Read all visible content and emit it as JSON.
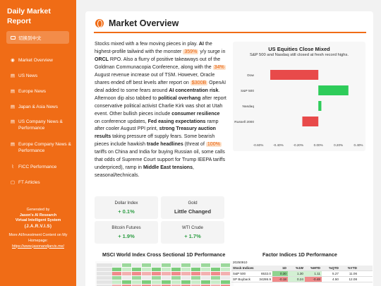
{
  "sidebar": {
    "brand": "Daily Market Report",
    "lang_label": "切换到中文",
    "items": [
      {
        "icon": "globe-icon",
        "glyph": "◉",
        "label": "Market Overview"
      },
      {
        "icon": "news-icon",
        "glyph": "▤",
        "label": "US News"
      },
      {
        "icon": "news-icon",
        "glyph": "▤",
        "label": "Europe News"
      },
      {
        "icon": "news-icon",
        "glyph": "▤",
        "label": "Japan & Asia News"
      },
      {
        "icon": "news-icon",
        "glyph": "▤",
        "label": "US Company News & Performance"
      },
      {
        "icon": "news-icon",
        "glyph": "▤",
        "label": "Europe Company News & Performance"
      },
      {
        "icon": "chart-icon",
        "glyph": "⌇",
        "label": "FICC Performance"
      },
      {
        "icon": "file-icon",
        "glyph": "▢",
        "label": "FT Articles"
      }
    ],
    "footer": {
      "line1": "Generated by",
      "line2": "Jason's AI Research",
      "line3": "Virtual Intelligent System",
      "line4": "(J.A.R.V.I.S)",
      "line5": "More AI/Investment Content on My Homepage:",
      "link": "https://www.jasonandjarvis.me/"
    }
  },
  "main": {
    "title": "Market Overview",
    "article": {
      "p1": "Stocks mixed with a few moving pieces in play. ",
      "b1": "AI",
      "p2": " the highest-profile tailwind with the monster ",
      "h1": "359%",
      "p3": " y/y surge in ",
      "b2": "ORCL",
      "p4": " RPO. Also a flurry of positive takeaways out of the Goldman Communacopia Conference, along with the ",
      "h2": "34%",
      "p5": " August revenue increase out of TSM. However, Oracle shares ended off best levels after report on ",
      "h3": "$300B",
      "p6": " OpenAI deal added to some fears around ",
      "b3": "AI concentration risk",
      "p7": ". Afternoon dip also tabbed to ",
      "b4": "political overhang",
      "p8": " after report conservative political activist Charlie Kirk was shot at Utah event. Other bullish pieces include ",
      "b5": "consumer resilience",
      "p9": " on conference updates, ",
      "b6": "Fed easing expectations",
      "p10": " ramp after cooler August PPI print, ",
      "b7": "strong Treasury auction results",
      "p11": " taking pressure off supply fears. Some bearish pieces include hawkish ",
      "b8": "trade headlines",
      "p12": " (threat of ",
      "h4": "100%",
      "p13": " tariffs on China and India for buying Russian oil, some calls that odds of Supreme Court support for Trump IEEPA tariffs underpriced), ramp in ",
      "b9": "Middle East tensions",
      "p14": ", seasonal/technicals."
    },
    "metrics": [
      {
        "label": "Dollar Index",
        "value": "+ 0.1%",
        "tone": "up"
      },
      {
        "label": "Gold",
        "value": "Little Changed",
        "tone": "flat"
      },
      {
        "label": "Bitcoin Futures",
        "value": "+ 1.9%",
        "tone": "up"
      },
      {
        "label": "WTI Crude",
        "value": "+ 1.7%",
        "tone": "up"
      }
    ],
    "heatmap_title": "MSCI World Index Cross Sectional 1D Performance",
    "factor_title": "Factor Indices 1D Performance",
    "factor_table": {
      "date": "20250910",
      "headers": [
        "Stock Indices",
        "1D",
        "%1W",
        "%MTD",
        "%QTD",
        "%YTD"
      ],
      "rows": [
        {
          "name": "S&P 500",
          "last": "6532.0",
          "d1": "0.30",
          "w1": "1.30",
          "mtd": "1.11",
          "qtd": "5.27",
          "ytd": "11.06"
        },
        {
          "name": "SP Buyback",
          "last": "34286.9",
          "d1": "-0.18",
          "w1": "0.24",
          "mtd": "-0.48",
          "qtd": "4.50",
          "ytd": "12.08"
        }
      ]
    }
  },
  "chart_data": {
    "type": "bar",
    "title": "US Equities Close Mixed",
    "subtitle": "S&P 500 and Nasdaq still closed at fresh record highs.",
    "categories": [
      "Dow",
      "S&P 500",
      "Nasdaq",
      "Russell 2000"
    ],
    "values": [
      -0.48,
      0.3,
      0.03,
      -0.16
    ],
    "xlim": [
      -0.6,
      0.4
    ],
    "xticks": [
      "-0.60%",
      "-0.40%",
      "-0.20%",
      "0.00%",
      "0.20%",
      "0.40%"
    ],
    "colors": {
      "negative": "#e84a4a",
      "positive": "#2ecc5a"
    }
  }
}
